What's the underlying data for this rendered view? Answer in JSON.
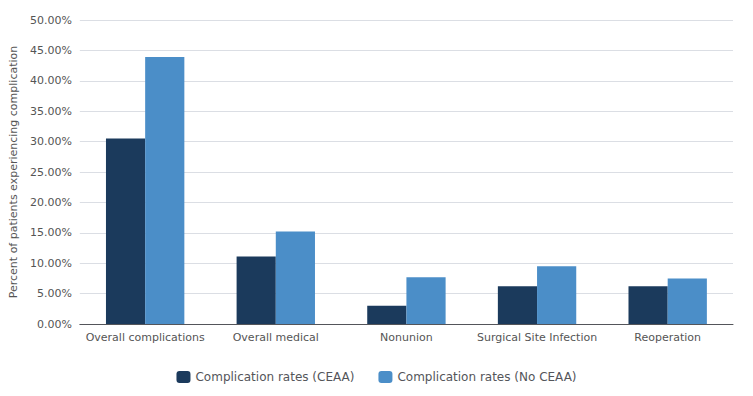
{
  "chart_data": {
    "type": "bar",
    "categories": [
      "Overall complications",
      "Overall medical",
      "Nonunion",
      "Surgical Site Infection",
      "Reoperation"
    ],
    "series": [
      {
        "name": "Complication rates (CEAA)",
        "color": "#1b3a5c",
        "values": [
          0.305,
          0.111,
          0.03,
          0.062,
          0.062
        ]
      },
      {
        "name": "Complication rates (No CEAA)",
        "color": "#4b8ec8",
        "values": [
          0.439,
          0.152,
          0.077,
          0.095,
          0.075
        ]
      }
    ],
    "ylabel": "Percent of patients experiencing complication",
    "ylim": [
      0.0,
      0.5
    ],
    "yticks": [
      {
        "value": 0.0,
        "label": "0.00%"
      },
      {
        "value": 0.05,
        "label": "5.00%"
      },
      {
        "value": 0.1,
        "label": "10.00%"
      },
      {
        "value": 0.15,
        "label": "15.00%"
      },
      {
        "value": 0.2,
        "label": "20.00%"
      },
      {
        "value": 0.25,
        "label": "25.00%"
      },
      {
        "value": 0.3,
        "label": "30.00%"
      },
      {
        "value": 0.35,
        "label": "35.00%"
      },
      {
        "value": 0.4,
        "label": "40.00%"
      },
      {
        "value": 0.45,
        "label": "45.00%"
      },
      {
        "value": 0.5,
        "label": "50.00%"
      }
    ],
    "grid": true,
    "legend": "bottom"
  }
}
